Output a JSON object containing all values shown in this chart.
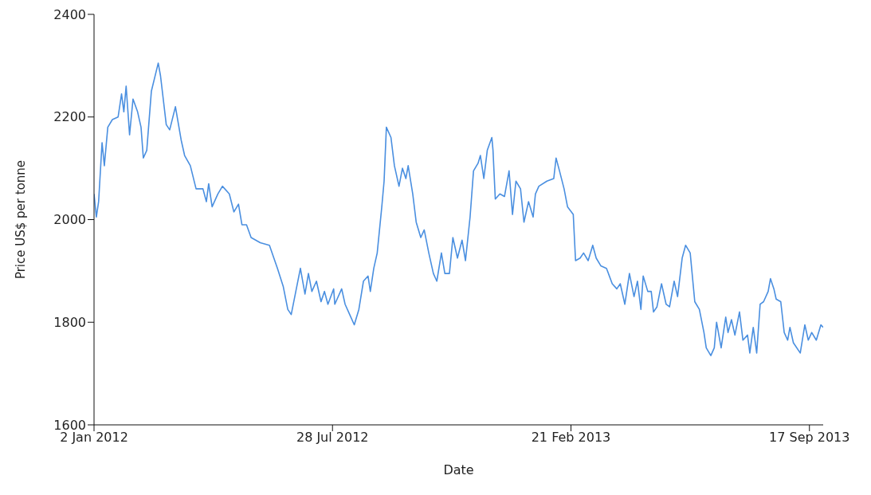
{
  "chart_data": {
    "type": "line",
    "xlabel": "Date",
    "ylabel": "Price US$ per tonne",
    "xlim": [
      "2012-01-02",
      "2013-09-29"
    ],
    "xticks": [
      {
        "value": "2012-01-02",
        "label": "2 Jan 2012"
      },
      {
        "value": "2012-07-28",
        "label": "28 Jul 2012"
      },
      {
        "value": "2013-02-21",
        "label": "21 Feb 2013"
      },
      {
        "value": "2013-09-17",
        "label": "17 Sep 2013"
      }
    ],
    "ylim": [
      1600,
      2400
    ],
    "yticks": [
      1600,
      1800,
      2000,
      2200,
      2400
    ],
    "grid": false,
    "marker": "none",
    "line_style": "solid",
    "x": [
      "2012-01-02",
      "2012-01-04",
      "2012-01-06",
      "2012-01-09",
      "2012-01-11",
      "2012-01-14",
      "2012-01-18",
      "2012-01-23",
      "2012-01-26",
      "2012-01-28",
      "2012-01-30",
      "2012-02-02",
      "2012-02-05",
      "2012-02-09",
      "2012-02-12",
      "2012-02-14",
      "2012-02-17",
      "2012-02-21",
      "2012-02-27",
      "2012-02-29",
      "2012-03-05",
      "2012-03-08",
      "2012-03-13",
      "2012-03-18",
      "2012-03-21",
      "2012-03-26",
      "2012-03-31",
      "2012-04-06",
      "2012-04-09",
      "2012-04-11",
      "2012-04-14",
      "2012-04-19",
      "2012-04-23",
      "2012-04-29",
      "2012-05-03",
      "2012-05-07",
      "2012-05-10",
      "2012-05-14",
      "2012-05-18",
      "2012-05-26",
      "2012-06-03",
      "2012-06-10",
      "2012-06-15",
      "2012-06-19",
      "2012-06-22",
      "2012-06-26",
      "2012-06-30",
      "2012-07-04",
      "2012-07-07",
      "2012-07-10",
      "2012-07-14",
      "2012-07-18",
      "2012-07-21",
      "2012-07-24",
      "2012-07-29",
      "2012-07-30",
      "2012-08-05",
      "2012-08-08",
      "2012-08-12",
      "2012-08-16",
      "2012-08-20",
      "2012-08-24",
      "2012-08-28",
      "2012-08-30",
      "2012-09-02",
      "2012-09-05",
      "2012-09-09",
      "2012-09-11",
      "2012-09-13",
      "2012-09-17",
      "2012-09-20",
      "2012-09-24",
      "2012-09-27",
      "2012-09-30",
      "2012-10-02",
      "2012-10-06",
      "2012-10-09",
      "2012-10-13",
      "2012-10-16",
      "2012-10-20",
      "2012-10-24",
      "2012-10-27",
      "2012-10-31",
      "2012-11-03",
      "2012-11-07",
      "2012-11-10",
      "2012-11-14",
      "2012-11-18",
      "2012-11-21",
      "2012-11-25",
      "2012-11-28",
      "2012-12-02",
      "2012-12-04",
      "2012-12-07",
      "2012-12-10",
      "2012-12-14",
      "2012-12-15",
      "2012-12-17",
      "2012-12-21",
      "2012-12-25",
      "2012-12-29",
      "2013-01-01",
      "2013-01-04",
      "2013-01-08",
      "2013-01-11",
      "2013-01-15",
      "2013-01-19",
      "2013-01-21",
      "2013-01-24",
      "2013-01-31",
      "2013-02-06",
      "2013-02-08",
      "2013-02-11",
      "2013-02-15",
      "2013-02-18",
      "2013-02-23",
      "2013-02-25",
      "2013-03-01",
      "2013-03-04",
      "2013-03-08",
      "2013-03-12",
      "2013-03-15",
      "2013-03-19",
      "2013-03-24",
      "2013-03-29",
      "2013-04-02",
      "2013-04-05",
      "2013-04-09",
      "2013-04-13",
      "2013-04-17",
      "2013-04-20",
      "2013-04-23",
      "2013-04-25",
      "2013-04-29",
      "2013-05-02",
      "2013-05-04",
      "2013-05-07",
      "2013-05-11",
      "2013-05-15",
      "2013-05-18",
      "2013-05-22",
      "2013-05-25",
      "2013-05-29",
      "2013-06-01",
      "2013-06-05",
      "2013-06-09",
      "2013-06-13",
      "2013-06-17",
      "2013-06-19",
      "2013-06-23",
      "2013-06-26",
      "2013-06-28",
      "2013-07-02",
      "2013-07-06",
      "2013-07-08",
      "2013-07-11",
      "2013-07-14",
      "2013-07-18",
      "2013-07-21",
      "2013-07-25",
      "2013-07-27",
      "2013-07-30",
      "2013-08-02",
      "2013-08-05",
      "2013-08-08",
      "2013-08-12",
      "2013-08-14",
      "2013-08-17",
      "2013-08-19",
      "2013-08-23",
      "2013-08-26",
      "2013-08-29",
      "2013-08-31",
      "2013-09-03",
      "2013-09-09",
      "2013-09-13",
      "2013-09-16",
      "2013-09-19",
      "2013-09-23",
      "2013-09-27",
      "2013-09-29"
    ],
    "series": [
      {
        "color": "#4a8fe0",
        "values": [
          2050,
          2005,
          2035,
          2150,
          2105,
          2180,
          2195,
          2200,
          2245,
          2210,
          2260,
          2165,
          2235,
          2210,
          2180,
          2120,
          2135,
          2250,
          2305,
          2280,
          2185,
          2175,
          2220,
          2155,
          2125,
          2105,
          2060,
          2060,
          2035,
          2070,
          2025,
          2050,
          2065,
          2050,
          2015,
          2030,
          1990,
          1990,
          1965,
          1955,
          1950,
          1905,
          1870,
          1825,
          1815,
          1860,
          1905,
          1855,
          1895,
          1860,
          1880,
          1840,
          1860,
          1835,
          1865,
          1835,
          1865,
          1835,
          1815,
          1795,
          1825,
          1880,
          1890,
          1860,
          1905,
          1935,
          2025,
          2075,
          2180,
          2160,
          2105,
          2065,
          2100,
          2080,
          2105,
          2050,
          1995,
          1965,
          1980,
          1935,
          1895,
          1880,
          1935,
          1895,
          1895,
          1965,
          1925,
          1960,
          1920,
          2005,
          2095,
          2110,
          2125,
          2080,
          2135,
          2160,
          2135,
          2040,
          2050,
          2045,
          2095,
          2010,
          2075,
          2060,
          1995,
          2035,
          2005,
          2050,
          2065,
          2075,
          2080,
          2120,
          2095,
          2060,
          2025,
          2010,
          1920,
          1925,
          1935,
          1920,
          1950,
          1925,
          1910,
          1905,
          1875,
          1865,
          1875,
          1835,
          1895,
          1850,
          1880,
          1825,
          1890,
          1860,
          1860,
          1820,
          1830,
          1875,
          1835,
          1830,
          1880,
          1850,
          1925,
          1950,
          1935,
          1840,
          1825,
          1780,
          1750,
          1735,
          1750,
          1800,
          1750,
          1810,
          1780,
          1805,
          1775,
          1820,
          1765,
          1775,
          1740,
          1790,
          1740,
          1835,
          1840,
          1860,
          1885,
          1865,
          1845,
          1840,
          1780,
          1765,
          1790,
          1760,
          1740,
          1795,
          1765,
          1780,
          1765,
          1795,
          1790
        ]
      }
    ]
  }
}
